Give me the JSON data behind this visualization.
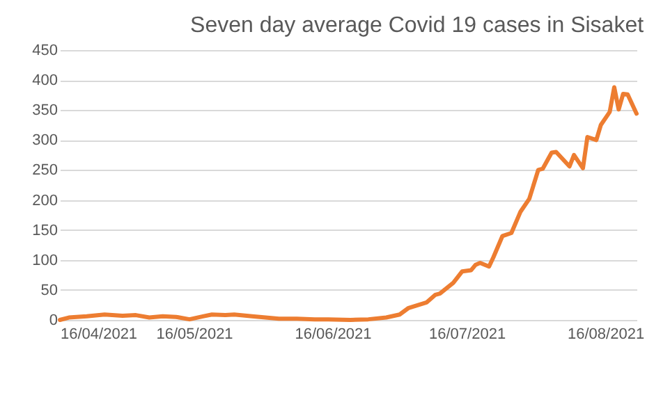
{
  "chart_data": {
    "type": "line",
    "title": "Seven day average Covid 19 cases in Sisaket",
    "x": [
      "2021-04-16",
      "2021-04-18",
      "2021-04-22",
      "2021-04-26",
      "2021-04-30",
      "2021-05-03",
      "2021-05-06",
      "2021-05-09",
      "2021-05-12",
      "2021-05-15",
      "2021-05-18",
      "2021-05-20",
      "2021-05-23",
      "2021-05-25",
      "2021-05-29",
      "2021-06-01",
      "2021-06-04",
      "2021-06-08",
      "2021-06-12",
      "2021-06-15",
      "2021-06-20",
      "2021-06-24",
      "2021-06-28",
      "2021-07-01",
      "2021-07-03",
      "2021-07-07",
      "2021-07-09",
      "2021-07-10",
      "2021-07-13",
      "2021-07-15",
      "2021-07-17",
      "2021-07-18",
      "2021-07-19",
      "2021-07-21",
      "2021-07-22",
      "2021-07-24",
      "2021-07-26",
      "2021-07-28",
      "2021-07-30",
      "2021-08-01",
      "2021-08-02",
      "2021-08-04",
      "2021-08-05",
      "2021-08-08",
      "2021-08-09",
      "2021-08-11",
      "2021-08-12",
      "2021-08-14",
      "2021-08-15",
      "2021-08-17",
      "2021-08-18",
      "2021-08-19",
      "2021-08-20",
      "2021-08-21",
      "2021-08-23"
    ],
    "series": [
      {
        "color": "#ed7d31",
        "values": [
          0,
          4,
          6,
          9,
          7,
          8,
          4,
          6,
          5,
          1,
          6,
          9,
          8,
          9,
          6,
          4,
          2,
          2,
          1,
          1,
          0,
          1,
          4,
          9,
          20,
          29,
          42,
          44,
          62,
          81,
          83,
          92,
          95,
          89,
          105,
          140,
          145,
          180,
          202,
          250,
          252,
          279,
          280,
          256,
          275,
          253,
          305,
          300,
          325,
          347,
          388,
          351,
          377,
          376,
          344
        ]
      }
    ],
    "xlim": [
      "2021-04-16",
      "2021-08-23"
    ],
    "xticks": [
      {
        "value": "2021-04-16",
        "label": "16/04/2021"
      },
      {
        "value": "2021-05-16",
        "label": "16/05/2021"
      },
      {
        "value": "2021-06-16",
        "label": "16/06/2021"
      },
      {
        "value": "2021-07-16",
        "label": "16/07/2021"
      },
      {
        "value": "2021-08-16",
        "label": "16/08/2021"
      }
    ],
    "ylim": [
      0,
      450
    ],
    "yticks": [
      0,
      50,
      100,
      150,
      200,
      250,
      300,
      350,
      400,
      450
    ],
    "grid": "y",
    "marker": "none",
    "line_style": "solid"
  }
}
